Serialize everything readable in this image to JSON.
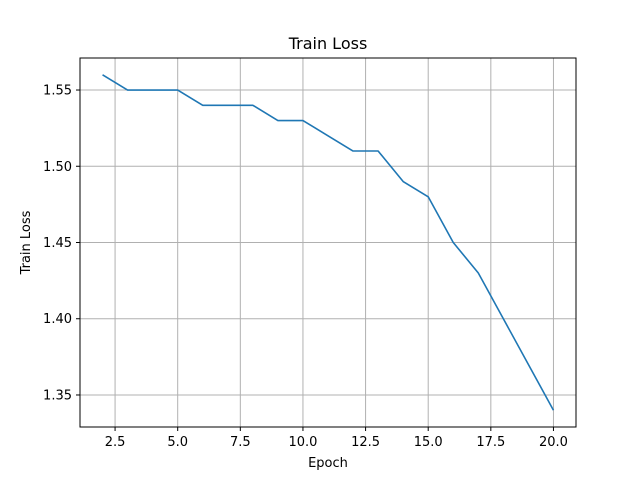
{
  "chart_data": {
    "type": "line",
    "title": "Train Loss",
    "xlabel": "Epoch",
    "ylabel": "Train Loss",
    "xlim": [
      1.1,
      20.9
    ],
    "ylim": [
      1.329,
      1.571
    ],
    "xticks": [
      2.5,
      5.0,
      7.5,
      10.0,
      12.5,
      15.0,
      17.5,
      20.0
    ],
    "yticks": [
      1.35,
      1.4,
      1.45,
      1.5,
      1.55
    ],
    "grid": true,
    "line_color": "#1f77b4",
    "grid_color": "#b0b0b0",
    "series": [
      {
        "x": [
          2,
          3,
          4,
          5,
          6,
          7,
          8,
          9,
          10,
          11,
          12,
          13,
          14,
          15,
          16,
          17,
          18,
          19,
          20
        ],
        "values": [
          1.56,
          1.55,
          1.55,
          1.55,
          1.54,
          1.54,
          1.54,
          1.53,
          1.53,
          1.52,
          1.51,
          1.51,
          1.49,
          1.48,
          1.45,
          1.43,
          1.4,
          1.37,
          1.34
        ]
      }
    ]
  }
}
